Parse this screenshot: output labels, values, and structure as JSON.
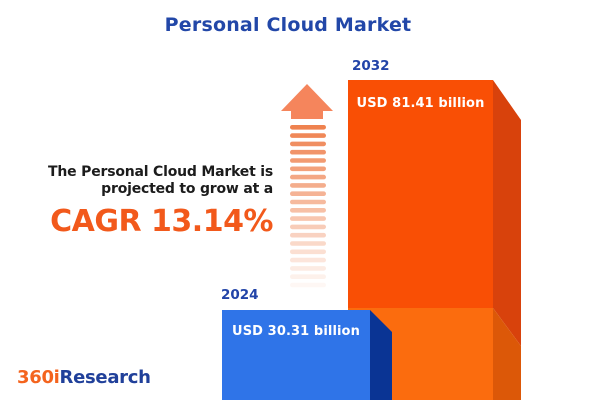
{
  "title": "Personal Cloud Market",
  "note": {
    "line1": "The Personal Cloud Market is",
    "line2": "projected to grow at a",
    "cagr": "CAGR 13.14%"
  },
  "logo": {
    "prefix": "360i",
    "suffix": "Research"
  },
  "colors": {
    "title_blue": "#2247A8",
    "cagr_orange": "#F2591B",
    "note_text": "#1C1C1C",
    "year_label_blue": "#2244A8",
    "bar_value_text": "#FFFFFF",
    "arrow_head": "#F5855C",
    "arrow_stripe": "#EE7B46",
    "background": "#FFFFFF"
  },
  "chart_data": {
    "type": "bar",
    "title": "Personal Cloud Market",
    "categories": [
      "2024",
      "2032"
    ],
    "values": [
      30.31,
      81.41
    ],
    "unit": "USD billion",
    "cagr_percent": 13.14,
    "annotation": "The Personal Cloud Market is projected to grow at a CAGR 13.14%",
    "legend": false,
    "bars": [
      {
        "year": "2024",
        "value": 30.31,
        "label": "USD 30.31 billion",
        "face_color": "#2F74E8",
        "side_color": "#0A3494"
      },
      {
        "year": "2032",
        "value": 81.41,
        "label": "USD 81.41 billion",
        "face_color": "#F94F05",
        "side_color": "#D8420C",
        "base_face_color": "#FB6C0E",
        "base_side_color": "#DC5808"
      }
    ]
  }
}
